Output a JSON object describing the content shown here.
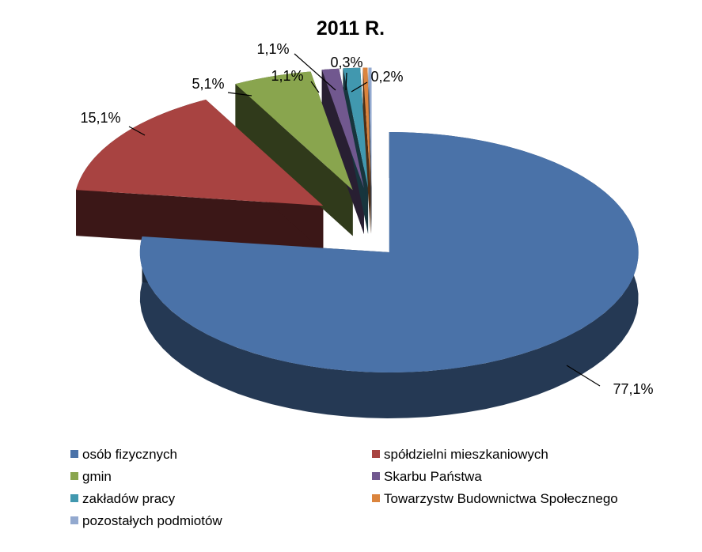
{
  "chart_data": {
    "type": "pie",
    "title": "2011 R.",
    "series": [
      {
        "name": "osób fizycznych",
        "value": 77.1,
        "label": "77,1%",
        "color": "#4A72A8"
      },
      {
        "name": "spółdzielni mieszkaniowych",
        "value": 15.1,
        "label": "15,1%",
        "color": "#A84341"
      },
      {
        "name": "gmin",
        "value": 5.1,
        "label": "5,1%",
        "color": "#89A54E"
      },
      {
        "name": "Skarbu Państwa",
        "value": 1.1,
        "label": "1,1%",
        "color": "#71588F"
      },
      {
        "name": "zakładów  pracy",
        "value": 1.1,
        "label": "1,1%",
        "color": "#4198AF"
      },
      {
        "name": "Towarzystw Budownictwa Społecznego",
        "value": 0.3,
        "label": "0,3%",
        "color": "#DB843D"
      },
      {
        "name": "pozostałych podmiotów",
        "value": 0.2,
        "label": "0,2%",
        "color": "#93A9CF"
      }
    ],
    "style": "3d-pie",
    "exploded": true,
    "legend_position": "bottom"
  }
}
